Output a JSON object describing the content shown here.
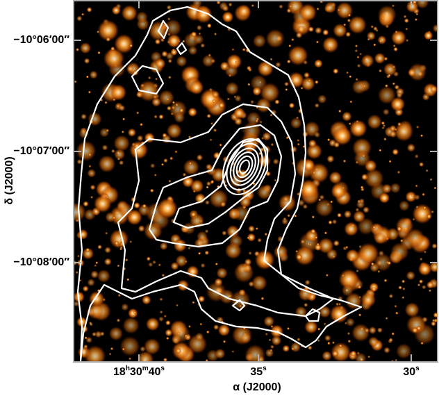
{
  "figure": {
    "x_axis": {
      "label": "α (J2000)",
      "ticks": [
        "18h30m40s",
        "35s",
        "30s"
      ]
    },
    "y_axis": {
      "label": "δ (J2000)",
      "ticks": [
        "−10°06′00″",
        "−10°07′00″",
        "−10°08′00″"
      ]
    }
  }
}
